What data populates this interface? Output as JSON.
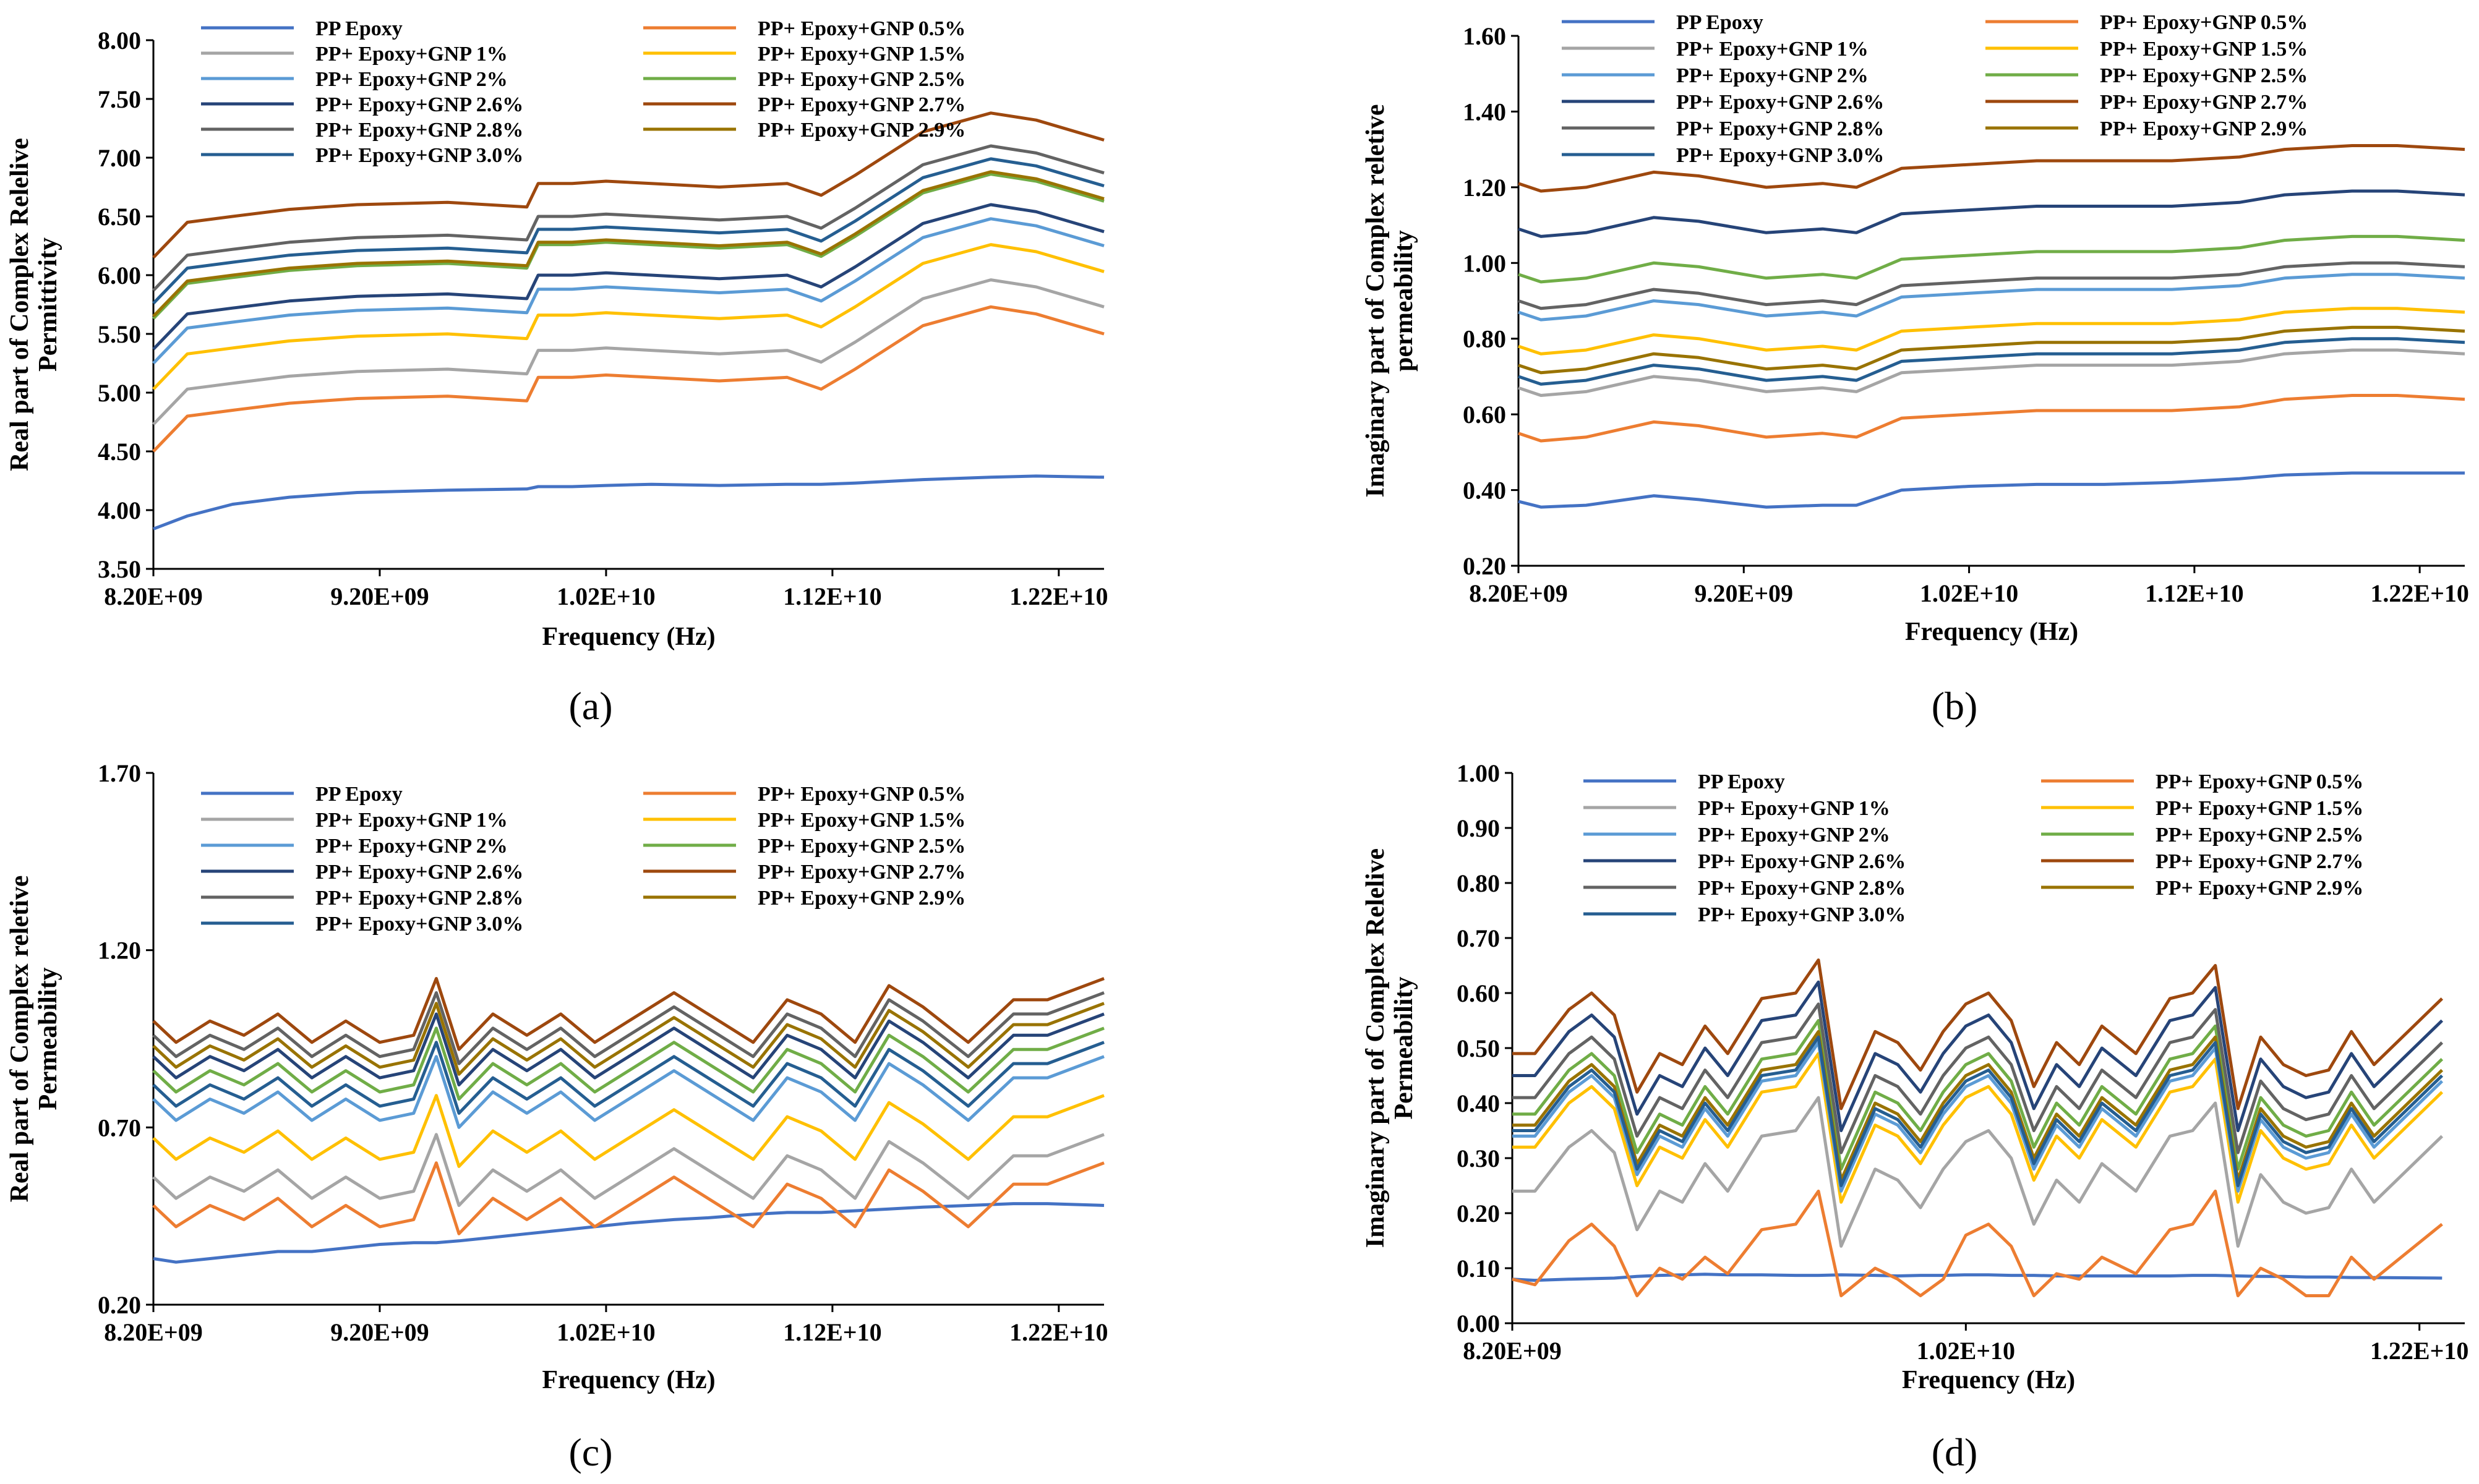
{
  "figure": {
    "captions": [
      "(a)",
      "(b)",
      "(c)",
      "(d)"
    ]
  },
  "series_names": [
    "PP Epoxy",
    "PP+ Epoxy+GNP 0.5%",
    "PP+ Epoxy+GNP 1%",
    "PP+ Epoxy+GNP 1.5%",
    "PP+ Epoxy+GNP 2%",
    "PP+ Epoxy+GNP 2.5%",
    "PP+ Epoxy+GNP 2.6%",
    "PP+ Epoxy+GNP 2.7%",
    "PP+ Epoxy+GNP 2.8%",
    "PP+ Epoxy+GNP 2.9%",
    "PP+ Epoxy+GNP 3.0%"
  ],
  "colors": [
    "#4472C4",
    "#ED7D31",
    "#A5A5A5",
    "#FFC000",
    "#5B9BD5",
    "#70AD47",
    "#264478",
    "#9E480E",
    "#636363",
    "#997300",
    "#255E91"
  ],
  "chart_data": [
    {
      "type": "line",
      "id": "a",
      "caption": "(a)",
      "ylabel_lines": [
        "Real part of Complex Relelive",
        "Permittivity"
      ],
      "xlabel": "Frequency (Hz)",
      "xlim": [
        8200000000,
        12400000000
      ],
      "ylim": [
        3.5,
        8.0
      ],
      "xticks": [
        8200000000,
        9200000000,
        10200000000,
        11200000000,
        12200000000
      ],
      "xtick_labels": [
        "8.20E+09",
        "9.20E+09",
        "1.02E+10",
        "1.12E+10",
        "1.22E+10"
      ],
      "yticks": [
        3.5,
        4.0,
        4.5,
        5.0,
        5.5,
        6.0,
        6.5,
        7.0,
        7.5,
        8.0
      ],
      "ytick_labels": [
        "3.50",
        "4.00",
        "4.50",
        "5.00",
        "5.50",
        "6.00",
        "6.50",
        "7.00",
        "7.50",
        "8.00"
      ],
      "x_ghz": [
        8.2,
        8.35,
        8.55,
        8.8,
        9.1,
        9.5,
        9.85,
        9.9,
        10.05,
        10.2,
        10.4,
        10.7,
        11.0,
        11.15,
        11.3,
        11.6,
        11.9,
        12.1,
        12.4
      ],
      "base": [
        -0.35,
        -0.05,
        0.0,
        0.06,
        0.1,
        0.12,
        0.08,
        0.28,
        0.28,
        0.3,
        0.28,
        0.25,
        0.28,
        0.18,
        0.35,
        0.72,
        0.88,
        0.82,
        0.65
      ],
      "series": [
        {
          "name": "PP Epoxy",
          "values": [
            3.84,
            3.95,
            4.05,
            4.11,
            4.15,
            4.17,
            4.18,
            4.2,
            4.2,
            4.21,
            4.22,
            4.21,
            4.22,
            4.22,
            4.23,
            4.26,
            4.28,
            4.29,
            4.28
          ]
        },
        {
          "name": "PP+ Epoxy+GNP 0.5%",
          "offset": 4.85
        },
        {
          "name": "PP+ Epoxy+GNP 1%",
          "offset": 5.08
        },
        {
          "name": "PP+ Epoxy+GNP 1.5%",
          "offset": 5.38
        },
        {
          "name": "PP+ Epoxy+GNP 2%",
          "offset": 5.6
        },
        {
          "name": "PP+ Epoxy+GNP 2.5%",
          "offset": 5.98
        },
        {
          "name": "PP+ Epoxy+GNP 2.6%",
          "offset": 5.72
        },
        {
          "name": "PP+ Epoxy+GNP 2.7%",
          "offset": 6.5
        },
        {
          "name": "PP+ Epoxy+GNP 2.8%",
          "offset": 6.22
        },
        {
          "name": "PP+ Epoxy+GNP 2.9%",
          "offset": 6.0
        },
        {
          "name": "PP+ Epoxy+GNP 3.0%",
          "offset": 6.11
        }
      ]
    },
    {
      "type": "line",
      "id": "b",
      "caption": "(b)",
      "ylabel_lines": [
        "Imaginary part of Complex reletive",
        "permeability"
      ],
      "xlabel": "Frequency (Hz)",
      "xlim": [
        8200000000,
        12400000000
      ],
      "ylim": [
        0.2,
        1.6
      ],
      "xticks": [
        8200000000,
        9200000000,
        10200000000,
        11200000000,
        12200000000
      ],
      "xtick_labels": [
        "8.20E+09",
        "9.20E+09",
        "1.02E+10",
        "1.12E+10",
        "1.22E+10"
      ],
      "yticks": [
        0.2,
        0.4,
        0.6,
        0.8,
        1.0,
        1.2,
        1.4,
        1.6
      ],
      "ytick_labels": [
        "0.20",
        "0.40",
        "0.60",
        "0.80",
        "1.00",
        "1.20",
        "1.40",
        "1.60"
      ],
      "x_ghz": [
        8.2,
        8.3,
        8.5,
        8.8,
        9.0,
        9.3,
        9.55,
        9.7,
        9.9,
        10.2,
        10.5,
        10.8,
        11.1,
        11.4,
        11.6,
        11.9,
        12.1,
        12.4
      ],
      "base": [
        -0.01,
        -0.03,
        -0.02,
        0.02,
        0.01,
        -0.02,
        -0.01,
        -0.02,
        0.03,
        0.04,
        0.05,
        0.05,
        0.05,
        0.06,
        0.08,
        0.09,
        0.09,
        0.08
      ],
      "series": [
        {
          "name": "PP Epoxy",
          "values": [
            0.37,
            0.355,
            0.36,
            0.385,
            0.375,
            0.355,
            0.36,
            0.36,
            0.4,
            0.41,
            0.415,
            0.415,
            0.42,
            0.43,
            0.44,
            0.445,
            0.445,
            0.445
          ]
        },
        {
          "name": "PP+ Epoxy+GNP 0.5%",
          "offset": 0.56
        },
        {
          "name": "PP+ Epoxy+GNP 1%",
          "offset": 0.68
        },
        {
          "name": "PP+ Epoxy+GNP 1.5%",
          "offset": 0.79
        },
        {
          "name": "PP+ Epoxy+GNP 2%",
          "offset": 0.88
        },
        {
          "name": "PP+ Epoxy+GNP 2.5%",
          "offset": 0.98
        },
        {
          "name": "PP+ Epoxy+GNP 2.6%",
          "offset": 1.1
        },
        {
          "name": "PP+ Epoxy+GNP 2.7%",
          "offset": 1.22
        },
        {
          "name": "PP+ Epoxy+GNP 2.8%",
          "offset": 0.91
        },
        {
          "name": "PP+ Epoxy+GNP 2.9%",
          "offset": 0.74
        },
        {
          "name": "PP+ Epoxy+GNP 3.0%",
          "offset": 0.71
        }
      ]
    },
    {
      "type": "line",
      "id": "c",
      "caption": "(c)",
      "ylabel_lines": [
        "Real part of Complex reletive",
        "Permeability"
      ],
      "xlabel": "Frequency (Hz)",
      "xlim": [
        8200000000,
        12400000000
      ],
      "ylim": [
        0.2,
        1.7
      ],
      "xticks": [
        8200000000,
        9200000000,
        10200000000,
        11200000000,
        12200000000
      ],
      "xtick_labels": [
        "8.20E+09",
        "9.20E+09",
        "1.02E+10",
        "1.12E+10",
        "1.22E+10"
      ],
      "yticks": [
        0.2,
        0.7,
        1.2,
        1.7
      ],
      "ytick_labels": [
        "0.20",
        "0.70",
        "1.20",
        "1.70"
      ],
      "x_ghz": [
        8.2,
        8.3,
        8.45,
        8.6,
        8.75,
        8.9,
        9.05,
        9.2,
        9.35,
        9.45,
        9.55,
        9.7,
        9.85,
        10.0,
        10.15,
        10.3,
        10.5,
        10.65,
        10.85,
        11.0,
        11.15,
        11.3,
        11.45,
        11.6,
        11.8,
        12.0,
        12.15,
        12.4
      ],
      "base": [
        0.0,
        -0.06,
        0.0,
        -0.04,
        0.02,
        -0.06,
        0.0,
        -0.06,
        -0.04,
        0.12,
        -0.08,
        0.02,
        -0.04,
        0.02,
        -0.06,
        0.0,
        0.08,
        0.02,
        -0.06,
        0.06,
        0.02,
        -0.06,
        0.1,
        0.04,
        -0.06,
        0.06,
        0.06,
        0.12
      ],
      "series": [
        {
          "name": "PP Epoxy",
          "values": [
            0.33,
            0.32,
            0.33,
            0.34,
            0.35,
            0.35,
            0.36,
            0.37,
            0.375,
            0.375,
            0.38,
            0.39,
            0.4,
            0.41,
            0.42,
            0.43,
            0.44,
            0.445,
            0.455,
            0.46,
            0.46,
            0.465,
            0.47,
            0.475,
            0.48,
            0.485,
            0.485,
            0.48
          ]
        },
        {
          "name": "PP+ Epoxy+GNP 0.5%",
          "offset": 0.48
        },
        {
          "name": "PP+ Epoxy+GNP 1%",
          "offset": 0.56
        },
        {
          "name": "PP+ Epoxy+GNP 1.5%",
          "offset": 0.67
        },
        {
          "name": "PP+ Epoxy+GNP 2%",
          "offset": 0.78
        },
        {
          "name": "PP+ Epoxy+GNP 2.5%",
          "offset": 0.86
        },
        {
          "name": "PP+ Epoxy+GNP 2.6%",
          "offset": 0.9
        },
        {
          "name": "PP+ Epoxy+GNP 2.7%",
          "offset": 1.0
        },
        {
          "name": "PP+ Epoxy+GNP 2.8%",
          "offset": 0.96
        },
        {
          "name": "PP+ Epoxy+GNP 2.9%",
          "offset": 0.93
        },
        {
          "name": "PP+ Epoxy+GNP 3.0%",
          "offset": 0.82
        }
      ]
    },
    {
      "type": "line",
      "id": "d",
      "caption": "(d)",
      "ylabel_lines": [
        "Imaginary part of Complex Relelive",
        "Permeability"
      ],
      "xlabel": "Frequency (Hz)",
      "xlim": [
        8200000000,
        12400000000
      ],
      "ylim": [
        0.0,
        1.0
      ],
      "xticks": [
        8200000000,
        10200000000,
        12200000000
      ],
      "xtick_labels": [
        "8.20E+09",
        "1.02E+10",
        "1.22E+10"
      ],
      "yticks": [
        0.0,
        0.1,
        0.2,
        0.3,
        0.4,
        0.5,
        0.6,
        0.7,
        0.8,
        0.9,
        1.0
      ],
      "ytick_labels": [
        "0.00",
        "0.10",
        "0.20",
        "0.30",
        "0.40",
        "0.50",
        "0.60",
        "0.70",
        "0.80",
        "0.90",
        "1.00"
      ],
      "x_ghz": [
        8.2,
        8.3,
        8.45,
        8.55,
        8.65,
        8.75,
        8.85,
        8.95,
        9.05,
        9.15,
        9.3,
        9.45,
        9.55,
        9.65,
        9.8,
        9.9,
        10.0,
        10.1,
        10.2,
        10.3,
        10.4,
        10.5,
        10.6,
        10.7,
        10.8,
        10.95,
        11.1,
        11.2,
        11.3,
        11.4,
        11.5,
        11.6,
        11.7,
        11.8,
        11.9,
        12.0,
        12.3
      ],
      "base": [
        0.0,
        0.0,
        0.08,
        0.11,
        0.07,
        -0.07,
        0.0,
        -0.02,
        0.05,
        0.0,
        0.1,
        0.11,
        0.17,
        -0.1,
        0.04,
        0.02,
        -0.03,
        0.04,
        0.09,
        0.11,
        0.06,
        -0.06,
        0.02,
        -0.02,
        0.05,
        0.0,
        0.1,
        0.11,
        0.16,
        -0.1,
        0.03,
        -0.02,
        -0.04,
        -0.03,
        0.04,
        -0.02,
        0.1
      ],
      "series": [
        {
          "name": "PP Epoxy",
          "values": [
            0.08,
            0.078,
            0.08,
            0.081,
            0.082,
            0.085,
            0.087,
            0.088,
            0.089,
            0.088,
            0.088,
            0.087,
            0.087,
            0.088,
            0.087,
            0.086,
            0.087,
            0.087,
            0.088,
            0.088,
            0.087,
            0.087,
            0.086,
            0.086,
            0.086,
            0.086,
            0.086,
            0.087,
            0.087,
            0.086,
            0.085,
            0.085,
            0.084,
            0.084,
            0.083,
            0.083,
            0.082
          ]
        },
        {
          "name": "PP+ Epoxy+GNP 0.5%",
          "values": [
            0.08,
            0.07,
            0.15,
            0.18,
            0.14,
            0.05,
            0.1,
            0.08,
            0.12,
            0.09,
            0.17,
            0.18,
            0.24,
            0.05,
            0.1,
            0.08,
            0.05,
            0.08,
            0.16,
            0.18,
            0.14,
            0.05,
            0.09,
            0.08,
            0.12,
            0.09,
            0.17,
            0.18,
            0.24,
            0.05,
            0.1,
            0.08,
            0.05,
            0.05,
            0.12,
            0.08,
            0.18
          ]
        },
        {
          "name": "PP+ Epoxy+GNP 1%",
          "offset": 0.24
        },
        {
          "name": "PP+ Epoxy+GNP 1.5%",
          "offset": 0.32
        },
        {
          "name": "PP+ Epoxy+GNP 2%",
          "offset": 0.34
        },
        {
          "name": "PP+ Epoxy+GNP 2.5%",
          "offset": 0.38
        },
        {
          "name": "PP+ Epoxy+GNP 2.6%",
          "offset": 0.45
        },
        {
          "name": "PP+ Epoxy+GNP 2.7%",
          "offset": 0.49
        },
        {
          "name": "PP+ Epoxy+GNP 2.8%",
          "offset": 0.41
        },
        {
          "name": "PP+ Epoxy+GNP 2.9%",
          "offset": 0.36
        },
        {
          "name": "PP+ Epoxy+GNP 3.0%",
          "offset": 0.35
        }
      ]
    }
  ]
}
